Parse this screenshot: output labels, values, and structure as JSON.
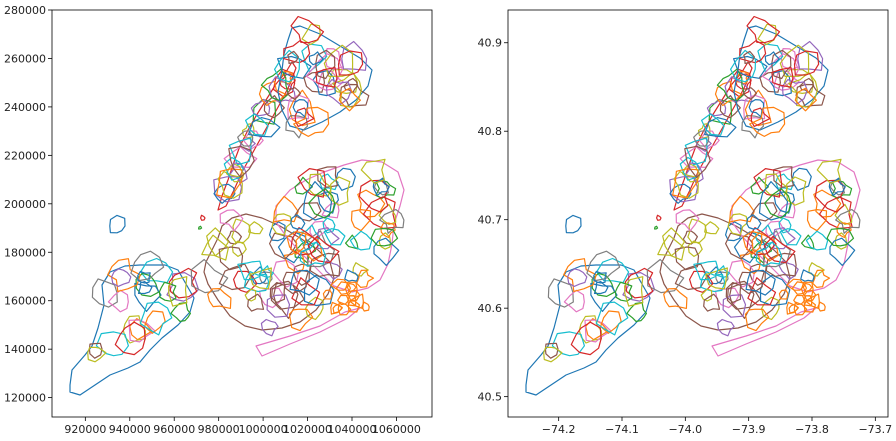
{
  "figure": {
    "panels": [
      {
        "id": "left",
        "x_ticks": [
          "920000",
          "940000",
          "960000",
          "980000",
          "1000000",
          "1020000",
          "1040000",
          "1060000"
        ],
        "x_tick_values": [
          920000,
          940000,
          960000,
          980000,
          1000000,
          1020000,
          1040000,
          1060000
        ],
        "x_range": [
          905000,
          1076000
        ],
        "y_ticks": [
          "120000",
          "140000",
          "160000",
          "180000",
          "200000",
          "220000",
          "240000",
          "260000",
          "280000"
        ],
        "y_tick_values": [
          120000,
          140000,
          160000,
          180000,
          200000,
          220000,
          240000,
          260000,
          280000
        ],
        "y_range": [
          112000,
          280000
        ]
      },
      {
        "id": "right",
        "x_ticks": [
          "−74.2",
          "−74.1",
          "−74.0",
          "−73.9",
          "−73.8",
          "−73.7"
        ],
        "x_tick_values": [
          -74.2,
          -74.1,
          -74.0,
          -73.9,
          -73.8,
          -73.7
        ],
        "x_range": [
          -74.28,
          -73.68
        ],
        "y_ticks": [
          "40.5",
          "40.6",
          "40.7",
          "40.8",
          "40.9"
        ],
        "y_tick_values": [
          40.5,
          40.6,
          40.7,
          40.8,
          40.9
        ],
        "y_range": [
          40.477,
          40.937
        ]
      }
    ],
    "palette": [
      "#1f77b4",
      "#ff7f0e",
      "#2ca02c",
      "#d62728",
      "#9467bd",
      "#8c564b",
      "#e377c2",
      "#7f7f7f",
      "#bcbd22",
      "#17becf"
    ]
  }
}
